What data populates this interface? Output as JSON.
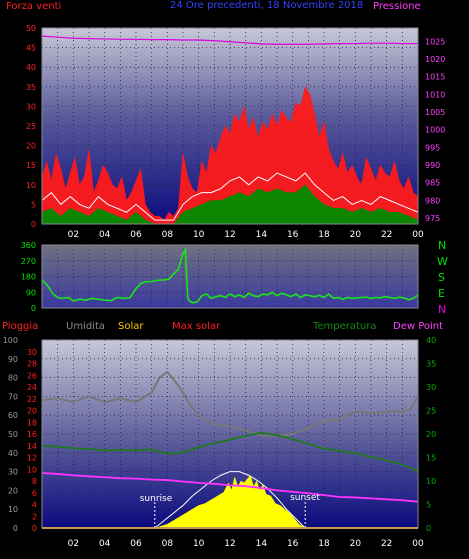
{
  "header": {
    "left_label": "Forza venti",
    "center_label": "24 Ore precedenti, 18 Novembre 2018",
    "right_label": "Pressione"
  },
  "bottom_header": {
    "rain_label": "Pioggia",
    "humidity_label": "Umidita",
    "solar_label": "Solar",
    "maxsolar_label": "Max solar",
    "temperature_label": "Temperatura",
    "dewpoint_label": "Dew Point"
  },
  "compass": [
    "N",
    "W",
    "S",
    "E",
    "N"
  ],
  "annotations": {
    "sunrise": "sunrise",
    "sunset": "sunset"
  },
  "colors": {
    "wind_gust": "#ff1a1a",
    "wind_avg": "#ffffff",
    "wind_low": "#008c00",
    "pressure": "#dd00dd",
    "direction": "#19e619",
    "humidity": "#777777",
    "temperature": "#1f7a1f",
    "dewpoint": "#ff33ff",
    "solar": "#ffff00",
    "maxsolar": "#ffffff",
    "rain": "#ff2222",
    "title_blue": "#3344ff"
  },
  "chart_data": [
    {
      "type": "line",
      "name": "wind-pressure",
      "x_ticks": [
        "02",
        "04",
        "06",
        "08",
        "10",
        "12",
        "14",
        "16",
        "18",
        "20",
        "22",
        "00"
      ],
      "x_range": [
        0,
        24
      ],
      "left_axis": {
        "ticks": [
          0,
          5,
          10,
          15,
          20,
          25,
          30,
          35,
          40,
          45,
          50
        ],
        "range": [
          0,
          50
        ]
      },
      "right_axis": {
        "ticks": [
          975,
          980,
          985,
          990,
          995,
          1000,
          1005,
          1010,
          1015,
          1020,
          1025
        ],
        "range": [
          973.3,
          1028.8
        ]
      },
      "series": [
        {
          "name": "Forza venti",
          "axis": "left",
          "kind": "gust",
          "x": [
            0,
            0.3,
            0.6,
            0.9,
            1.2,
            1.5,
            1.8,
            2.1,
            2.4,
            2.7,
            3.0,
            3.3,
            3.6,
            3.9,
            4.2,
            4.5,
            4.8,
            5.1,
            5.4,
            5.7,
            6.0,
            6.3,
            6.6,
            6.9,
            7.2,
            7.5,
            7.8,
            8.1,
            8.4,
            8.7,
            9.0,
            9.3,
            9.6,
            9.9,
            10.2,
            10.5,
            10.8,
            11.1,
            11.4,
            11.7,
            12.0,
            12.3,
            12.6,
            12.9,
            13.2,
            13.5,
            13.8,
            14.1,
            14.4,
            14.7,
            15.0,
            15.3,
            15.6,
            15.9,
            16.2,
            16.5,
            16.8,
            17.1,
            17.4,
            17.7,
            18.0,
            18.3,
            18.6,
            18.9,
            19.2,
            19.5,
            19.8,
            20.1,
            20.4,
            20.7,
            21.0,
            21.3,
            21.6,
            21.9,
            22.2,
            22.5,
            22.8,
            23.1,
            23.4,
            23.7,
            24.0
          ],
          "values": [
            12,
            16,
            11,
            18,
            14,
            9,
            13,
            17,
            10,
            12,
            19,
            8,
            11,
            15,
            13,
            10,
            9,
            12,
            6,
            8,
            11,
            14,
            5,
            3,
            2,
            2,
            1,
            3,
            2,
            4,
            18,
            12,
            9,
            8,
            16,
            13,
            20,
            18,
            22,
            25,
            23,
            28,
            26,
            30,
            24,
            27,
            22,
            26,
            24,
            28,
            25,
            29,
            27,
            26,
            31,
            30,
            35,
            33,
            28,
            22,
            26,
            19,
            16,
            14,
            18,
            13,
            15,
            12,
            10,
            17,
            14,
            11,
            15,
            13,
            12,
            16,
            11,
            9,
            12,
            8,
            7
          ]
        },
        {
          "name": "Vento medio",
          "axis": "left",
          "kind": "avg",
          "x": [
            0,
            0.6,
            1.2,
            1.8,
            2.4,
            3.0,
            3.6,
            4.2,
            4.8,
            5.4,
            6.0,
            6.6,
            7.2,
            7.8,
            8.4,
            9.0,
            9.6,
            10.2,
            10.8,
            11.4,
            12.0,
            12.6,
            13.2,
            13.8,
            14.4,
            15.0,
            15.6,
            16.2,
            16.8,
            17.4,
            18.0,
            18.6,
            19.2,
            19.8,
            20.4,
            21.0,
            21.6,
            22.2,
            22.8,
            23.4,
            24.0
          ],
          "values": [
            6,
            8,
            5,
            7,
            5,
            4,
            7,
            5,
            4,
            3,
            5,
            3,
            1,
            1,
            1,
            5,
            7,
            8,
            8,
            9,
            11,
            12,
            10,
            12,
            11,
            13,
            12,
            11,
            13,
            10,
            8,
            6,
            7,
            5,
            6,
            5,
            7,
            6,
            5,
            4,
            3
          ]
        },
        {
          "name": "Vento minimo",
          "axis": "left",
          "kind": "low",
          "x": [
            0,
            0.6,
            1.2,
            1.8,
            2.4,
            3.0,
            3.6,
            4.2,
            4.8,
            5.4,
            6.0,
            6.6,
            7.2,
            7.8,
            8.4,
            9.0,
            9.6,
            10.2,
            10.8,
            11.4,
            12.0,
            12.6,
            13.2,
            13.8,
            14.4,
            15.0,
            15.6,
            16.2,
            16.8,
            17.4,
            18.0,
            18.6,
            19.2,
            19.8,
            20.4,
            21.0,
            21.6,
            22.2,
            22.8,
            23.4,
            24.0
          ],
          "values": [
            3,
            4,
            2,
            4,
            3,
            2,
            4,
            3,
            2,
            1,
            3,
            1,
            0,
            0,
            0,
            3,
            4,
            5,
            6,
            6,
            7,
            8,
            7,
            9,
            8,
            9,
            8,
            8,
            10,
            7,
            5,
            4,
            4,
            3,
            4,
            3,
            4,
            3,
            3,
            2,
            1
          ]
        },
        {
          "name": "Pressione",
          "axis": "right",
          "kind": "pressure",
          "x": [
            0,
            1,
            2,
            3,
            4,
            5,
            6,
            7,
            8,
            9,
            10,
            11,
            12,
            13,
            14,
            15,
            16,
            17,
            18,
            19,
            20,
            21,
            22,
            23,
            24
          ],
          "values": [
            1026.5,
            1026.2,
            1025.9,
            1025.8,
            1025.7,
            1025.6,
            1025.6,
            1025.5,
            1025.5,
            1025.4,
            1025.4,
            1025.2,
            1024.9,
            1024.6,
            1024.3,
            1024.2,
            1024.2,
            1024.2,
            1024.3,
            1024.4,
            1024.4,
            1024.5,
            1024.5,
            1024.4,
            1024.4
          ]
        }
      ]
    },
    {
      "type": "line",
      "name": "wind-direction",
      "x_range": [
        0,
        24
      ],
      "y_axis": {
        "ticks": [
          0,
          90,
          180,
          270,
          360
        ],
        "range": [
          0,
          360
        ]
      },
      "series": [
        {
          "name": "Direzione",
          "kind": "direction",
          "x": [
            0,
            0.3,
            0.7,
            1.0,
            1.3,
            1.7,
            2.0,
            2.4,
            2.8,
            3.2,
            3.6,
            4.0,
            4.4,
            4.8,
            5.2,
            5.6,
            6.0,
            6.3,
            6.6,
            6.9,
            7.2,
            7.5,
            7.8,
            8.1,
            8.4,
            8.7,
            9.0,
            9.15,
            9.3,
            9.4,
            9.6,
            9.9,
            10.2,
            10.5,
            10.8,
            11.1,
            11.4,
            11.7,
            12.0,
            12.3,
            12.6,
            12.9,
            13.2,
            13.5,
            13.8,
            14.1,
            14.4,
            14.7,
            15.0,
            15.3,
            15.6,
            15.9,
            16.2,
            16.5,
            16.8,
            17.1,
            17.4,
            17.7,
            18.0,
            18.3,
            18.6,
            18.9,
            19.2,
            19.5,
            19.8,
            20.1,
            20.4,
            20.7,
            21.0,
            21.3,
            21.6,
            21.9,
            22.2,
            22.5,
            22.8,
            23.1,
            23.4,
            23.7,
            24.0
          ],
          "values": [
            160,
            135,
            80,
            60,
            55,
            60,
            40,
            50,
            45,
            55,
            50,
            45,
            42,
            60,
            55,
            58,
            110,
            140,
            150,
            150,
            155,
            160,
            160,
            165,
            195,
            220,
            310,
            335,
            60,
            40,
            30,
            35,
            70,
            80,
            55,
            65,
            70,
            60,
            80,
            65,
            75,
            60,
            85,
            70,
            65,
            80,
            75,
            90,
            70,
            85,
            75,
            65,
            80,
            60,
            75,
            70,
            65,
            72,
            60,
            80,
            55,
            60,
            50,
            60,
            55,
            58,
            60,
            62,
            55,
            60,
            58,
            65,
            60,
            55,
            62,
            58,
            48,
            55,
            75
          ]
        }
      ]
    },
    {
      "type": "line",
      "name": "rain-humidity-solar-temperature",
      "x_ticks": [
        "02",
        "04",
        "06",
        "08",
        "10",
        "12",
        "14",
        "16",
        "18",
        "20",
        "22",
        "00"
      ],
      "x_range": [
        0,
        24
      ],
      "axes": {
        "humidity": {
          "ticks": [
            0,
            10,
            20,
            30,
            40,
            50,
            60,
            70,
            80,
            90,
            100
          ],
          "range": [
            0,
            100
          ]
        },
        "rain": {
          "ticks": [
            0,
            2,
            4,
            6,
            8,
            10,
            12,
            14,
            16,
            18,
            20,
            22,
            24,
            26,
            28,
            30
          ],
          "range": [
            0,
            32
          ]
        },
        "temperature": {
          "ticks": [
            0,
            5,
            10,
            15,
            20,
            25,
            30,
            35,
            40
          ],
          "range": [
            0,
            40
          ]
        }
      },
      "series": [
        {
          "name": "Umidita",
          "axis": "humidity",
          "kind": "humidity",
          "x": [
            0,
            1,
            2,
            3,
            4,
            5,
            6,
            7,
            7.5,
            8,
            8.5,
            9,
            9.5,
            10,
            11,
            12,
            13,
            14,
            15,
            16,
            17,
            18,
            19,
            20,
            21,
            22,
            23,
            23.5,
            24
          ],
          "values": [
            68,
            69,
            67,
            70,
            67,
            69,
            67,
            72,
            80,
            83,
            78,
            72,
            65,
            60,
            55,
            54,
            52,
            49,
            49,
            50,
            53,
            57,
            58,
            62,
            61,
            62,
            62,
            63,
            70
          ]
        },
        {
          "name": "Temperatura",
          "axis": "temperature",
          "kind": "temperature",
          "x": [
            0,
            1,
            2,
            3,
            4,
            5,
            6,
            7,
            8,
            9,
            10,
            11,
            12,
            13,
            14,
            15,
            16,
            17,
            18,
            19,
            20,
            21,
            22,
            23,
            24
          ],
          "values": [
            17.5,
            17.3,
            17.0,
            16.8,
            16.5,
            16.6,
            16.5,
            16.7,
            15.8,
            16.1,
            17.2,
            18.0,
            18.8,
            19.6,
            20.3,
            19.7,
            18.9,
            17.9,
            16.9,
            16.4,
            15.9,
            15.1,
            14.4,
            13.5,
            12.0
          ]
        },
        {
          "name": "Dew Point",
          "axis": "temperature",
          "kind": "dewpoint",
          "x": [
            0,
            1,
            2,
            3,
            4,
            5,
            6,
            7,
            8,
            9,
            10,
            11,
            12,
            13,
            14,
            15,
            16,
            17,
            18,
            19,
            20,
            21,
            22,
            23,
            24
          ],
          "values": [
            11.7,
            11.5,
            11.2,
            11.0,
            10.8,
            10.6,
            10.5,
            10.3,
            10.2,
            9.9,
            9.6,
            9.4,
            9.1,
            8.9,
            8.5,
            8.0,
            7.7,
            7.4,
            7.0,
            6.6,
            6.5,
            6.3,
            6.1,
            5.9,
            5.6
          ]
        },
        {
          "name": "Solar",
          "axis": "humidity",
          "kind": "solar",
          "x": [
            7.2,
            7.6,
            8.0,
            8.4,
            8.8,
            9.2,
            9.6,
            10.0,
            10.4,
            10.8,
            11.2,
            11.6,
            11.9,
            12.1,
            12.3,
            12.5,
            12.7,
            12.9,
            13.1,
            13.3,
            13.5,
            13.7,
            13.9,
            14.1,
            14.3,
            14.6,
            14.9,
            15.2,
            15.5,
            15.8,
            16.1,
            16.4,
            16.8
          ],
          "values": [
            0,
            1,
            2,
            4,
            6,
            8,
            10,
            12,
            13,
            15,
            17,
            19,
            24,
            20,
            27,
            22,
            25,
            24,
            26,
            28,
            22,
            25,
            20,
            23,
            18,
            17,
            13,
            12,
            10,
            8,
            5,
            2,
            0
          ]
        },
        {
          "name": "Max solar",
          "axis": "humidity",
          "kind": "maxsolar",
          "x": [
            7.2,
            7.8,
            8.4,
            9.0,
            9.6,
            10.2,
            10.8,
            11.4,
            12.0,
            12.6,
            13.2,
            13.8,
            14.4,
            15.0,
            15.6,
            16.2,
            16.8
          ],
          "values": [
            0,
            4,
            8,
            12,
            17,
            21,
            25,
            28,
            30,
            30,
            28,
            25,
            21,
            16,
            10,
            5,
            0
          ]
        },
        {
          "name": "Pioggia",
          "axis": "rain",
          "kind": "rain",
          "x": [
            0,
            24
          ],
          "values": [
            0,
            0
          ]
        }
      ]
    }
  ]
}
